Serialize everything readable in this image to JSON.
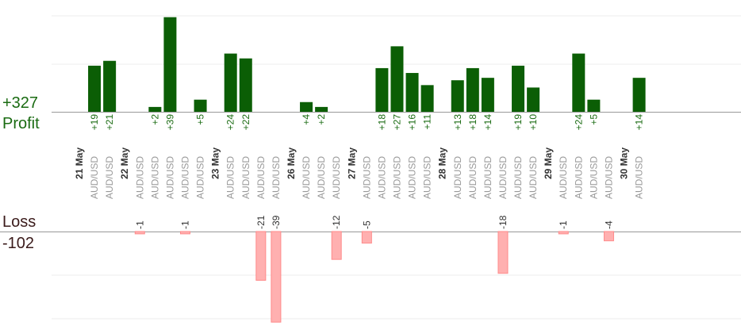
{
  "chart_data": {
    "type": "bar",
    "profit": {
      "total_label": "+327",
      "caption": "Profit",
      "color": "#1a6b12"
    },
    "loss": {
      "total_label": "-102",
      "caption": "Loss",
      "color": "#ffb3b3"
    },
    "colors": {
      "profit_fill": "#0b5e05",
      "profit_value_text": "#1a6b12",
      "loss_fill": "#ffb0b0",
      "loss_stroke": "#ff8a8a",
      "pair_text": "#999999",
      "date_text": "#333333",
      "grid": "#eeeeee",
      "axis": "#999999",
      "title_text": "#3a1a1a"
    },
    "columns": [
      {
        "type": "date",
        "label": "21 May"
      },
      {
        "type": "trade",
        "pair": "AUD/USD",
        "result": 19
      },
      {
        "type": "trade",
        "pair": "AUD/USD",
        "result": 21
      },
      {
        "type": "date",
        "label": "22 May"
      },
      {
        "type": "trade",
        "pair": "AUD/USD",
        "result": -1
      },
      {
        "type": "trade",
        "pair": "AUD/USD",
        "result": 2
      },
      {
        "type": "trade",
        "pair": "AUD/USD",
        "result": 39
      },
      {
        "type": "trade",
        "pair": "AUD/USD",
        "result": -1
      },
      {
        "type": "trade",
        "pair": "AUD/USD",
        "result": 5
      },
      {
        "type": "date",
        "label": "23 May"
      },
      {
        "type": "trade",
        "pair": "AUD/USD",
        "result": 24
      },
      {
        "type": "trade",
        "pair": "AUD/USD",
        "result": 22
      },
      {
        "type": "trade",
        "pair": "AUD/USD",
        "result": -21
      },
      {
        "type": "trade",
        "pair": "AUD/USD",
        "result": -39
      },
      {
        "type": "date",
        "label": "26 May"
      },
      {
        "type": "trade",
        "pair": "AUD/USD",
        "result": 4
      },
      {
        "type": "trade",
        "pair": "AUD/USD",
        "result": 2
      },
      {
        "type": "trade",
        "pair": "AUD/USD",
        "result": -12
      },
      {
        "type": "date",
        "label": "27 May"
      },
      {
        "type": "trade",
        "pair": "AUD/USD",
        "result": -5
      },
      {
        "type": "trade",
        "pair": "AUD/USD",
        "result": 18
      },
      {
        "type": "trade",
        "pair": "AUD/USD",
        "result": 27
      },
      {
        "type": "trade",
        "pair": "AUD/USD",
        "result": 16
      },
      {
        "type": "trade",
        "pair": "AUD/USD",
        "result": 11
      },
      {
        "type": "date",
        "label": "28 May"
      },
      {
        "type": "trade",
        "pair": "AUD/USD",
        "result": 13
      },
      {
        "type": "trade",
        "pair": "AUD/USD",
        "result": 18
      },
      {
        "type": "trade",
        "pair": "AUD/USD",
        "result": 14
      },
      {
        "type": "trade",
        "pair": "AUD/USD",
        "result": -18
      },
      {
        "type": "trade",
        "pair": "AUD/USD",
        "result": 19
      },
      {
        "type": "trade",
        "pair": "AUD/USD",
        "result": 10
      },
      {
        "type": "date",
        "label": "29 May"
      },
      {
        "type": "trade",
        "pair": "AUD/USD",
        "result": -1
      },
      {
        "type": "trade",
        "pair": "AUD/USD",
        "result": 24
      },
      {
        "type": "trade",
        "pair": "AUD/USD",
        "result": 5
      },
      {
        "type": "trade",
        "pair": "AUD/USD",
        "result": -4
      },
      {
        "type": "date",
        "label": "30 May"
      },
      {
        "type": "trade",
        "pair": "AUD/USD",
        "result": 14
      }
    ]
  }
}
